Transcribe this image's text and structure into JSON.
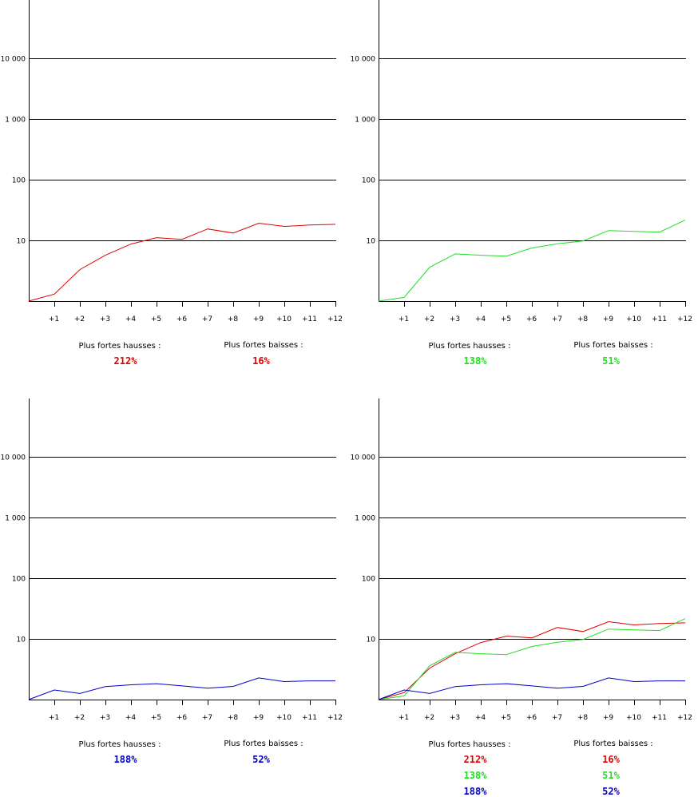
{
  "colors": {
    "red": "#e00000",
    "green": "#22dd22",
    "blue": "#0000cc",
    "axis": "#000000"
  },
  "stats_labels": {
    "hausses": "Plus fortes hausses :",
    "baisses": "Plus fortes baisses :"
  },
  "chart_data": [
    {
      "type": "line",
      "yscale": "log",
      "ylim": [
        1,
        100000
      ],
      "yticks": [
        "10",
        "100",
        "1 000",
        "10 000"
      ],
      "xticks": [
        "+1",
        "+2",
        "+3",
        "+4",
        "+5",
        "+6",
        "+7",
        "+8",
        "+9",
        "+10",
        "+11",
        "+12"
      ],
      "x": [
        0,
        1,
        2,
        3,
        4,
        5,
        6,
        7,
        8,
        9,
        10,
        11,
        12
      ],
      "series": [
        {
          "color": "red",
          "values": [
            1,
            1.3,
            3.3,
            5.7,
            8.7,
            11.1,
            10.4,
            15.4,
            13.2,
            19.2,
            17.0,
            17.9,
            18.4
          ]
        }
      ],
      "hausses": [
        "212%"
      ],
      "baisses": [
        "16%"
      ]
    },
    {
      "type": "line",
      "yscale": "log",
      "ylim": [
        1,
        100000
      ],
      "yticks": [
        "10",
        "100",
        "1 000",
        "10 000"
      ],
      "xticks": [
        "+1",
        "+2",
        "+3",
        "+4",
        "+5",
        "+6",
        "+7",
        "+8",
        "+9",
        "+10",
        "+11",
        "+12"
      ],
      "x": [
        0,
        1,
        2,
        3,
        4,
        5,
        6,
        7,
        8,
        9,
        10,
        11,
        12
      ],
      "series": [
        {
          "color": "green",
          "values": [
            1,
            1.15,
            3.6,
            6.0,
            5.7,
            5.5,
            7.5,
            8.8,
            9.8,
            14.5,
            14.1,
            13.7,
            21.6
          ]
        }
      ],
      "hausses": [
        "138%"
      ],
      "baisses": [
        "51%"
      ]
    },
    {
      "type": "line",
      "yscale": "log",
      "ylim": [
        1,
        100000
      ],
      "yticks": [
        "10",
        "100",
        "1 000",
        "10 000"
      ],
      "xticks": [
        "+1",
        "+2",
        "+3",
        "+4",
        "+5",
        "+6",
        "+7",
        "+8",
        "+9",
        "+10",
        "+11",
        "+12"
      ],
      "x": [
        0,
        1,
        2,
        3,
        4,
        5,
        6,
        7,
        8,
        9,
        10,
        11,
        12
      ],
      "series": [
        {
          "color": "blue",
          "values": [
            1,
            1.44,
            1.26,
            1.64,
            1.75,
            1.83,
            1.68,
            1.54,
            1.65,
            2.27,
            1.98,
            2.03,
            2.03
          ]
        }
      ],
      "hausses": [
        "188%"
      ],
      "baisses": [
        "52%"
      ]
    },
    {
      "type": "line",
      "yscale": "log",
      "ylim": [
        1,
        100000
      ],
      "yticks": [
        "10",
        "100",
        "1 000",
        "10 000"
      ],
      "xticks": [
        "+1",
        "+2",
        "+3",
        "+4",
        "+5",
        "+6",
        "+7",
        "+8",
        "+9",
        "+10",
        "+11",
        "+12"
      ],
      "x": [
        0,
        1,
        2,
        3,
        4,
        5,
        6,
        7,
        8,
        9,
        10,
        11,
        12
      ],
      "series": [
        {
          "color": "red",
          "values": [
            1,
            1.3,
            3.3,
            5.7,
            8.7,
            11.1,
            10.4,
            15.4,
            13.2,
            19.2,
            17.0,
            17.9,
            18.4
          ]
        },
        {
          "color": "green",
          "values": [
            1,
            1.15,
            3.6,
            6.0,
            5.7,
            5.5,
            7.5,
            8.8,
            9.8,
            14.5,
            14.1,
            13.7,
            21.6
          ]
        },
        {
          "color": "blue",
          "values": [
            1,
            1.44,
            1.26,
            1.64,
            1.75,
            1.83,
            1.68,
            1.54,
            1.65,
            2.27,
            1.98,
            2.03,
            2.03
          ]
        }
      ],
      "hausses": [
        "212%",
        "138%",
        "188%"
      ],
      "baisses": [
        "16%",
        "51%",
        "52%"
      ],
      "stat_colors": [
        "red",
        "green",
        "blue"
      ]
    }
  ]
}
